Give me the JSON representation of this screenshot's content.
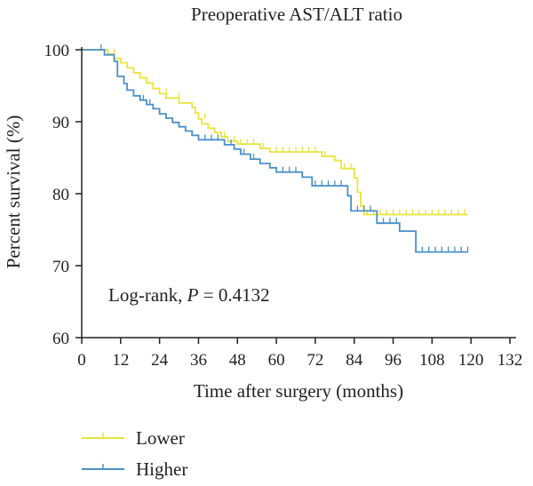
{
  "chart_data": {
    "type": "line",
    "step": true,
    "title": "Preoperative AST/ALT ratio",
    "xlabel": "Time after surgery (months)",
    "ylabel": "Percent survival (%)",
    "xlim": [
      0,
      132
    ],
    "ylim": [
      60,
      100
    ],
    "xticks": [
      0,
      12,
      24,
      36,
      48,
      60,
      72,
      84,
      96,
      108,
      120,
      132
    ],
    "yticks": [
      60,
      70,
      80,
      90,
      100
    ],
    "grid": false,
    "legend_position": "bottom-left",
    "annotation": {
      "prefix": "Log-rank, ",
      "p_symbol": "P",
      "equals": " = ",
      "p_value": "0.4132"
    },
    "series": [
      {
        "name": "Lower",
        "color": "#e8e43a",
        "steps": [
          [
            0,
            100
          ],
          [
            8,
            100
          ],
          [
            8,
            99.4
          ],
          [
            10,
            99.4
          ],
          [
            10,
            98.8
          ],
          [
            12,
            98.8
          ],
          [
            12,
            98.2
          ],
          [
            14,
            98.2
          ],
          [
            14,
            97.5
          ],
          [
            16,
            97.5
          ],
          [
            16,
            96.8
          ],
          [
            18,
            96.8
          ],
          [
            18,
            96.1
          ],
          [
            20,
            96.1
          ],
          [
            20,
            95.4
          ],
          [
            22,
            95.4
          ],
          [
            22,
            94.6
          ],
          [
            24,
            94.6
          ],
          [
            24,
            93.9
          ],
          [
            26,
            93.9
          ],
          [
            26,
            93.3
          ],
          [
            30,
            93.3
          ],
          [
            30,
            92.6
          ],
          [
            34,
            92.6
          ],
          [
            34,
            92
          ],
          [
            35,
            92
          ],
          [
            35,
            91.2
          ],
          [
            36,
            91.2
          ],
          [
            36,
            90.4
          ],
          [
            37,
            90.4
          ],
          [
            37,
            89.7
          ],
          [
            39,
            89.7
          ],
          [
            39,
            89.1
          ],
          [
            41,
            89.1
          ],
          [
            41,
            88.5
          ],
          [
            43,
            88.5
          ],
          [
            43,
            87.9
          ],
          [
            45,
            87.9
          ],
          [
            45,
            87.3
          ],
          [
            48,
            87.3
          ],
          [
            48,
            86.9
          ],
          [
            55,
            86.9
          ],
          [
            55,
            86.3
          ],
          [
            58,
            86.3
          ],
          [
            58,
            85.8
          ],
          [
            74,
            85.8
          ],
          [
            74,
            85.2
          ],
          [
            78,
            85.2
          ],
          [
            78,
            84.6
          ],
          [
            80,
            84.6
          ],
          [
            80,
            83.5
          ],
          [
            84,
            83.5
          ],
          [
            84,
            82.2
          ],
          [
            85,
            82.2
          ],
          [
            85,
            80.2
          ],
          [
            86,
            80.2
          ],
          [
            86,
            78.3
          ],
          [
            87,
            78.3
          ],
          [
            87,
            77.1
          ],
          [
            119,
            77.1
          ]
        ],
        "censors": [
          [
            10,
            99.4
          ],
          [
            26,
            93.9
          ],
          [
            30,
            93.3
          ],
          [
            38,
            90.4
          ],
          [
            44,
            87.9
          ],
          [
            47,
            87.3
          ],
          [
            49,
            86.9
          ],
          [
            51,
            86.9
          ],
          [
            53,
            86.9
          ],
          [
            56,
            86.3
          ],
          [
            60,
            85.8
          ],
          [
            62,
            85.8
          ],
          [
            64,
            85.8
          ],
          [
            66,
            85.8
          ],
          [
            68,
            85.8
          ],
          [
            70,
            85.8
          ],
          [
            72,
            85.8
          ],
          [
            75,
            85.2
          ],
          [
            81,
            83.5
          ],
          [
            83,
            83.5
          ],
          [
            88,
            77.1
          ],
          [
            90,
            77.1
          ],
          [
            92,
            77.1
          ],
          [
            94,
            77.1
          ],
          [
            96,
            77.1
          ],
          [
            98,
            77.1
          ],
          [
            100,
            77.1
          ],
          [
            102,
            77.1
          ],
          [
            104,
            77.1
          ],
          [
            106,
            77.1
          ],
          [
            108,
            77.1
          ],
          [
            110,
            77.1
          ],
          [
            112,
            77.1
          ],
          [
            114,
            77.1
          ],
          [
            116,
            77.1
          ],
          [
            118,
            77.1
          ]
        ]
      },
      {
        "name": "Higher",
        "color": "#4a90c9",
        "steps": [
          [
            0,
            100
          ],
          [
            7,
            100
          ],
          [
            7,
            99.3
          ],
          [
            10,
            99.3
          ],
          [
            10,
            98.4
          ],
          [
            11,
            98.4
          ],
          [
            11,
            96.3
          ],
          [
            13,
            96.3
          ],
          [
            13,
            95.3
          ],
          [
            14,
            95.3
          ],
          [
            14,
            94.4
          ],
          [
            16,
            94.4
          ],
          [
            16,
            93.6
          ],
          [
            18,
            93.6
          ],
          [
            18,
            93
          ],
          [
            20,
            93
          ],
          [
            20,
            92.4
          ],
          [
            22,
            92.4
          ],
          [
            22,
            91.8
          ],
          [
            24,
            91.8
          ],
          [
            24,
            91.1
          ],
          [
            26,
            91.1
          ],
          [
            26,
            90.5
          ],
          [
            28,
            90.5
          ],
          [
            28,
            89.9
          ],
          [
            30,
            89.9
          ],
          [
            30,
            89.3
          ],
          [
            32,
            89.3
          ],
          [
            32,
            88.7
          ],
          [
            34,
            88.7
          ],
          [
            34,
            88.1
          ],
          [
            36,
            88.1
          ],
          [
            36,
            87.5
          ],
          [
            44,
            87.5
          ],
          [
            44,
            86.8
          ],
          [
            47,
            86.8
          ],
          [
            47,
            86.2
          ],
          [
            49,
            86.2
          ],
          [
            49,
            85.5
          ],
          [
            52,
            85.5
          ],
          [
            52,
            84.8
          ],
          [
            55,
            84.8
          ],
          [
            55,
            84.2
          ],
          [
            58,
            84.2
          ],
          [
            58,
            83.6
          ],
          [
            60,
            83.6
          ],
          [
            60,
            83
          ],
          [
            68,
            83
          ],
          [
            68,
            82.3
          ],
          [
            71,
            82.3
          ],
          [
            71,
            81.1
          ],
          [
            82,
            81.1
          ],
          [
            82,
            79.7
          ],
          [
            83,
            79.7
          ],
          [
            83,
            77.6
          ],
          [
            91,
            77.6
          ],
          [
            91,
            75.9
          ],
          [
            98,
            75.9
          ],
          [
            98,
            74.8
          ],
          [
            103,
            74.8
          ],
          [
            103,
            71.9
          ],
          [
            119,
            71.9
          ]
        ],
        "censors": [
          [
            6,
            100
          ],
          [
            19,
            93
          ],
          [
            21,
            92.4
          ],
          [
            38,
            87.5
          ],
          [
            40,
            87.5
          ],
          [
            42,
            87.5
          ],
          [
            46,
            86.8
          ],
          [
            50,
            85.5
          ],
          [
            53,
            84.8
          ],
          [
            62,
            83
          ],
          [
            64,
            83
          ],
          [
            66,
            83
          ],
          [
            72,
            81.1
          ],
          [
            74,
            81.1
          ],
          [
            76,
            81.1
          ],
          [
            78,
            81.1
          ],
          [
            80,
            81.1
          ],
          [
            85,
            77.6
          ],
          [
            87,
            77.6
          ],
          [
            89,
            77.6
          ],
          [
            93,
            75.9
          ],
          [
            95,
            75.9
          ],
          [
            97,
            75.9
          ],
          [
            105,
            71.9
          ],
          [
            107,
            71.9
          ],
          [
            109,
            71.9
          ],
          [
            111,
            71.9
          ],
          [
            113,
            71.9
          ],
          [
            115,
            71.9
          ],
          [
            117,
            71.9
          ],
          [
            119,
            71.9
          ]
        ]
      }
    ]
  }
}
